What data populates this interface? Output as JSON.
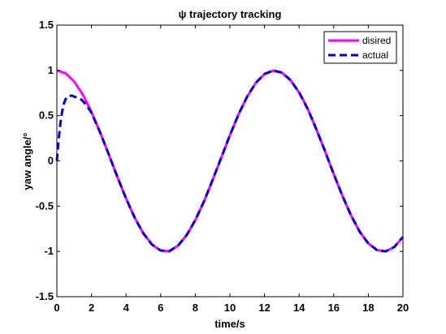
{
  "chart_data": {
    "type": "line",
    "title": "ψ trajectory tracking",
    "xlabel": "time/s",
    "ylabel": "yaw angle/°",
    "xlim": [
      0,
      20
    ],
    "ylim": [
      -1.5,
      1.5
    ],
    "xticks": [
      "0",
      "2",
      "4",
      "6",
      "8",
      "10",
      "12",
      "14",
      "16",
      "18",
      "20"
    ],
    "yticks": [
      "1.5",
      "1",
      "0.5",
      "0",
      "-0.5",
      "-1",
      "-1.5"
    ],
    "grid": false,
    "legend_position": "top-right",
    "series": [
      {
        "name": "disired",
        "color": "#ff00ff",
        "style": "solid",
        "x": [
          0,
          0.5,
          1,
          1.5,
          2,
          2.5,
          3,
          3.5,
          4,
          4.5,
          5,
          5.5,
          6,
          6.5,
          7,
          7.5,
          8,
          8.5,
          9,
          9.5,
          10,
          10.5,
          11,
          11.5,
          12,
          12.5,
          13,
          13.5,
          14,
          14.5,
          15,
          15.5,
          16,
          16.5,
          17,
          17.5,
          18,
          18.5,
          19,
          19.5,
          20
        ],
        "y": [
          1.0,
          0.969,
          0.878,
          0.733,
          0.54,
          0.315,
          0.071,
          -0.178,
          -0.416,
          -0.628,
          -0.801,
          -0.924,
          -0.99,
          -0.997,
          -0.936,
          -0.82,
          -0.654,
          -0.448,
          -0.211,
          0.036,
          0.284,
          0.515,
          0.712,
          0.863,
          0.96,
          0.998,
          0.976,
          0.893,
          0.757,
          0.574,
          0.347,
          0.107,
          -0.146,
          -0.384,
          -0.602,
          -0.782,
          -0.911,
          -0.985,
          -0.999,
          -0.951,
          -0.839
        ]
      },
      {
        "name": "actual",
        "color": "#0000cc",
        "style": "dashed",
        "x": [
          0,
          0.1,
          0.2,
          0.3,
          0.4,
          0.5,
          0.6,
          0.7,
          0.8,
          0.9,
          1.0,
          1.2,
          1.4,
          1.6,
          1.8,
          2,
          2.5,
          3,
          3.5,
          4,
          4.5,
          5,
          5.5,
          6,
          6.5,
          7,
          7.5,
          8,
          8.5,
          9,
          9.5,
          10,
          10.5,
          11,
          11.5,
          12,
          12.5,
          13,
          13.5,
          14,
          14.5,
          15,
          15.5,
          16,
          16.5,
          17,
          17.5,
          18,
          18.5,
          19,
          19.5,
          20
        ],
        "y": [
          0.0,
          0.23,
          0.41,
          0.54,
          0.63,
          0.68,
          0.71,
          0.72,
          0.72,
          0.72,
          0.71,
          0.7,
          0.68,
          0.64,
          0.59,
          0.53,
          0.315,
          0.071,
          -0.178,
          -0.416,
          -0.628,
          -0.801,
          -0.924,
          -0.99,
          -0.997,
          -0.936,
          -0.82,
          -0.654,
          -0.448,
          -0.211,
          0.036,
          0.284,
          0.515,
          0.712,
          0.863,
          0.96,
          0.998,
          0.976,
          0.893,
          0.757,
          0.574,
          0.347,
          0.107,
          -0.146,
          -0.384,
          -0.602,
          -0.782,
          -0.911,
          -0.985,
          -0.999,
          -0.951,
          -0.839
        ]
      }
    ]
  }
}
